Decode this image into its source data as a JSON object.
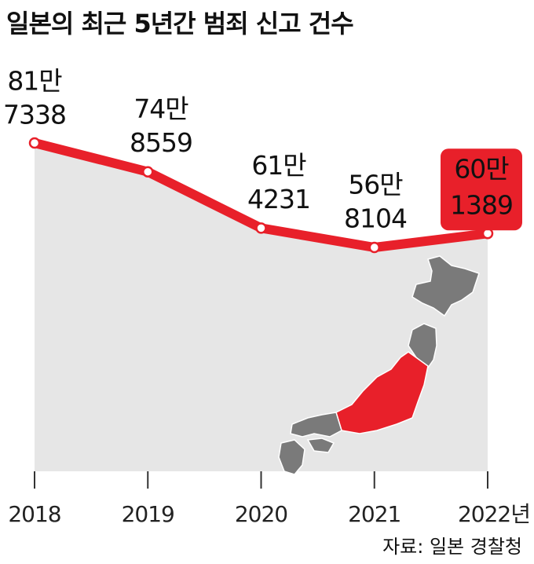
{
  "chart_data": {
    "type": "line",
    "title": "일본의 최근 5년간 범죄 신고 건수",
    "categories": [
      "2018",
      "2019",
      "2020",
      "2021",
      "2022년"
    ],
    "series": [
      {
        "color": "#e8202a",
        "values": [
          817338,
          748559,
          614231,
          568104,
          601389
        ],
        "value_labels": [
          [
            "81만",
            "7338"
          ],
          [
            "74만",
            "8559"
          ],
          [
            "61만",
            "4231"
          ],
          [
            "56만",
            "8104"
          ],
          [
            "60만",
            "1389"
          ]
        ]
      }
    ],
    "area_color": "#e6e6e6",
    "source": "자료: 일본 경찰청"
  }
}
